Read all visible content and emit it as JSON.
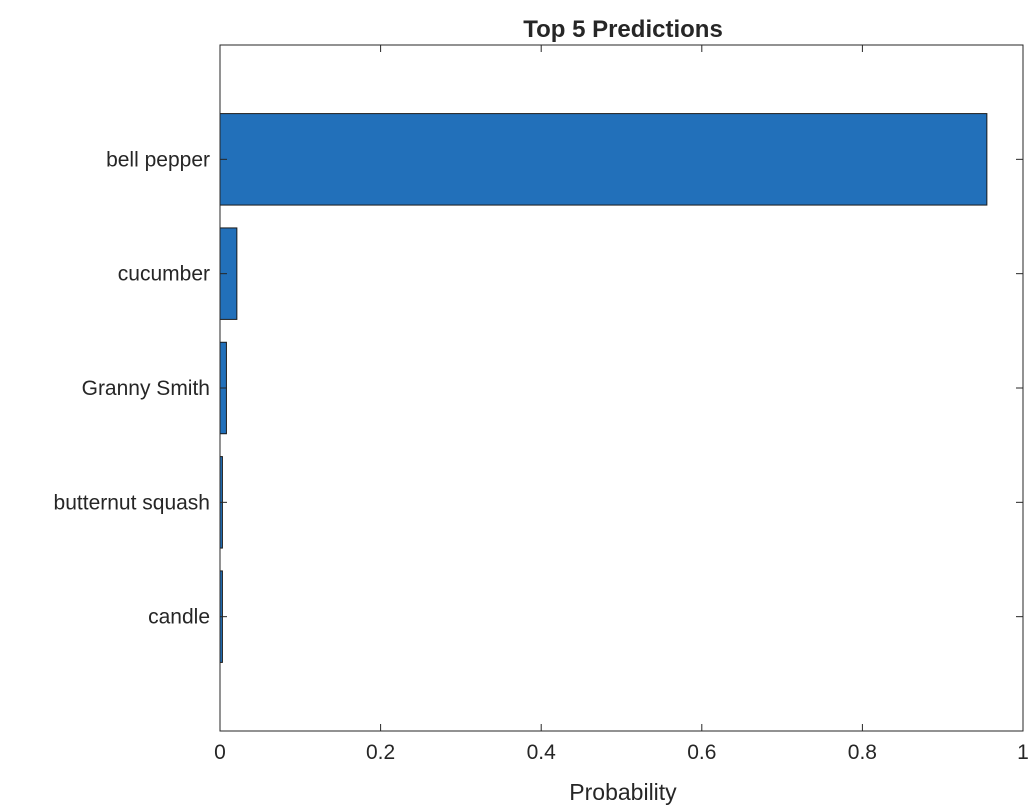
{
  "chart_data": {
    "type": "bar",
    "orientation": "horizontal",
    "title": "Top 5 Predictions",
    "xlabel": "Probability",
    "ylabel": "",
    "categories": [
      "bell pepper",
      "cucumber",
      "Granny Smith",
      "butternut squash",
      "candle"
    ],
    "values": [
      0.955,
      0.021,
      0.008,
      0.003,
      0.003
    ],
    "xlim": [
      0,
      1
    ],
    "xticks": [
      0,
      0.2,
      0.4,
      0.6,
      0.8,
      1
    ],
    "xtick_labels": [
      "0",
      "0.2",
      "0.4",
      "0.6",
      "0.8",
      "1"
    ],
    "grid": false,
    "legend": "none",
    "colors": {
      "bar_fill": "#2270ba",
      "bar_edge": "#1a1a1a",
      "axis": "#262626"
    }
  }
}
